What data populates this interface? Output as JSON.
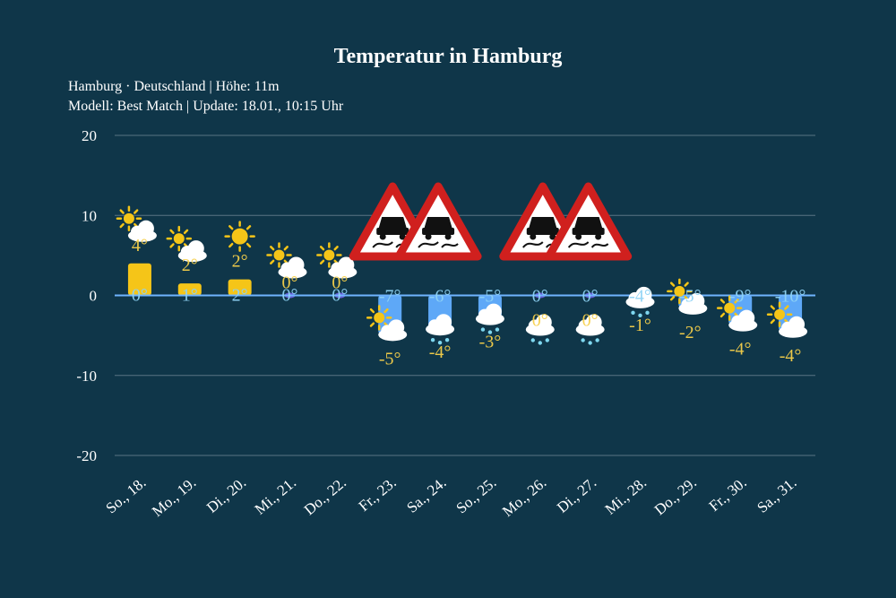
{
  "title": "Temperatur in Hamburg",
  "subtitle_line1": "Hamburg · Deutschland | Höhe: 11m",
  "subtitle_line2": "Modell: Best Match | Update: 18.01., 10:15 Uhr",
  "colors": {
    "background": "#0f3649",
    "warm_bar": "#f5c518",
    "cold_bar": "#5ea8f7",
    "zero_line": "#6fb4ff",
    "max_label_warm": "#f7d04a",
    "min_label_cold": "#8fd3f5",
    "snow_dots": "#7fd8f0",
    "grid": "#5a7484"
  },
  "chart_data": {
    "type": "bar",
    "categories": [
      "So., 18.",
      "Mo., 19.",
      "Di., 20.",
      "Mi., 21.",
      "Do., 22.",
      "Fr., 23.",
      "Sa., 24.",
      "So., 25.",
      "Mo., 26.",
      "Di., 27.",
      "Mi., 28.",
      "Do., 29.",
      "Fr., 30.",
      "Sa., 31."
    ],
    "max_values": [
      4,
      2,
      2,
      0,
      0,
      -7,
      -6,
      -5,
      0,
      0,
      -4,
      -5,
      -9,
      -10
    ],
    "min_values": [
      0,
      1,
      2,
      0,
      0,
      -5,
      -4,
      -3,
      0,
      0,
      -1,
      -2,
      -4,
      -4
    ],
    "bars": [
      {
        "low": 0,
        "high": 4
      },
      {
        "low": 0,
        "high": 1.5
      },
      {
        "low": 0,
        "high": 2
      },
      {
        "low": 0,
        "high": 0
      },
      {
        "low": 0,
        "high": 0
      },
      {
        "low": -4.8,
        "high": 0
      },
      {
        "low": -4,
        "high": 0
      },
      {
        "low": -2.7,
        "high": 0
      },
      {
        "low": 0,
        "high": 0
      },
      {
        "low": 0,
        "high": 0
      },
      {
        "low": -0.6,
        "high": 0
      },
      {
        "low": -1.5,
        "high": 0
      },
      {
        "low": -3.6,
        "high": 0
      },
      {
        "low": -4.4,
        "high": 0
      }
    ],
    "max_labels": [
      "4°",
      "2°",
      "2°",
      "0°",
      "0°",
      "-7°",
      "-6°",
      "-5°",
      "0°",
      "0°",
      "-4°",
      "-5°",
      "-9°",
      "-10°"
    ],
    "min_labels": [
      "0°",
      "1°",
      "2°",
      "0°",
      "0°",
      "-5°",
      "-4°",
      "-3°",
      "0°",
      "0°",
      "-1°",
      "-2°",
      "-4°",
      "-4°"
    ],
    "weather_icons": [
      "sun-cloud-icon",
      "sun-cloud-icon",
      "sun-icon",
      "sun-cloud-icon",
      "sun-cloud-icon",
      "sun-cloud-icon",
      "snow-cloud-icon",
      "snow-cloud-icon",
      "snow-cloud-icon",
      "snow-cloud-icon",
      "snow-cloud-icon",
      "sun-cloud-icon",
      "sun-cloud-icon",
      "sun-cloud-icon"
    ],
    "warnings": [
      "",
      "",
      "",
      "",
      "",
      "ice-warning-icon",
      "ice-warning-icon",
      "",
      "ice-warning-icon",
      "ice-warning-icon",
      "",
      "",
      "",
      ""
    ],
    "ylim": [
      -20,
      20
    ],
    "yticks": [
      20,
      10,
      0,
      -10,
      -20
    ],
    "ytick_labels": [
      "20",
      "10",
      "0",
      "-10",
      "-20"
    ],
    "grid": true,
    "legend": "none"
  }
}
